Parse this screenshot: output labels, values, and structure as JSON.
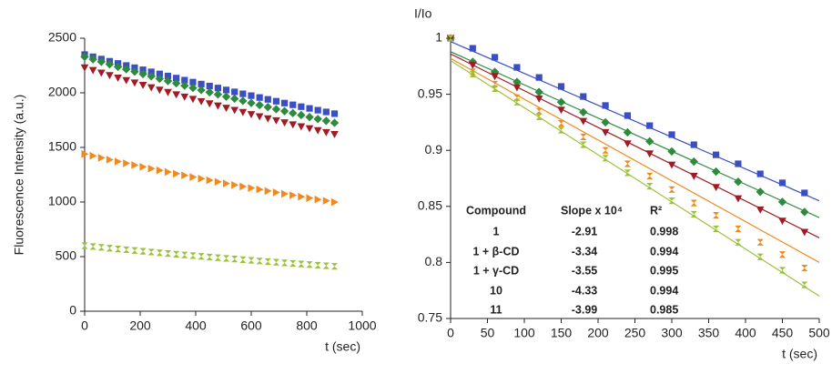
{
  "chart_data": [
    {
      "type": "scatter",
      "ylabel": "Fluorescence Intensity (a.u.)",
      "xlabel": "t (sec)",
      "xlim": [
        0,
        1000
      ],
      "xticks": [
        0,
        200,
        400,
        600,
        800,
        1000
      ],
      "ylim": [
        0,
        2500
      ],
      "yticks": [
        0,
        500,
        1000,
        1500,
        2000,
        2500
      ],
      "x": [
        0,
        30,
        60,
        90,
        120,
        150,
        180,
        210,
        240,
        270,
        300,
        330,
        360,
        390,
        420,
        450,
        480,
        510,
        540,
        570,
        600,
        630,
        660,
        690,
        720,
        750,
        780,
        810,
        840,
        870,
        900
      ],
      "series": [
        {
          "color": "#3b4ec2",
          "marker": "square",
          "values": [
            2350,
            2330,
            2309,
            2289,
            2269,
            2250,
            2230,
            2211,
            2192,
            2173,
            2154,
            2135,
            2116,
            2098,
            2080,
            2062,
            2044,
            2026,
            2009,
            1991,
            1974,
            1957,
            1940,
            1923,
            1906,
            1890,
            1873,
            1857,
            1841,
            1825,
            1809
          ]
        },
        {
          "color": "#2e8b3e",
          "marker": "diamond",
          "values": [
            2330,
            2307,
            2284,
            2261,
            2238,
            2216,
            2194,
            2172,
            2151,
            2129,
            2108,
            2087,
            2066,
            2045,
            2025,
            2005,
            1985,
            1965,
            1946,
            1926,
            1907,
            1888,
            1869,
            1850,
            1832,
            1814,
            1796,
            1778,
            1760,
            1743,
            1725
          ]
        },
        {
          "color": "#a01b24",
          "marker": "triangle-down",
          "values": [
            2230,
            2206,
            2183,
            2160,
            2137,
            2114,
            2092,
            2070,
            2048,
            2026,
            2005,
            1984,
            1963,
            1942,
            1921,
            1901,
            1881,
            1861,
            1841,
            1822,
            1802,
            1783,
            1764,
            1746,
            1727,
            1709,
            1691,
            1673,
            1655,
            1638,
            1620
          ]
        },
        {
          "color": "#f08a1e",
          "marker": "triangle-right",
          "values": [
            1440,
            1423,
            1405,
            1388,
            1371,
            1355,
            1338,
            1322,
            1306,
            1290,
            1275,
            1259,
            1244,
            1229,
            1214,
            1199,
            1185,
            1170,
            1156,
            1142,
            1128,
            1115,
            1101,
            1088,
            1075,
            1062,
            1049,
            1036,
            1023,
            1011,
            999
          ]
        },
        {
          "color": "#9cc13a",
          "marker": "hourglass",
          "values": [
            600,
            592,
            585,
            577,
            570,
            563,
            556,
            549,
            542,
            535,
            528,
            522,
            515,
            509,
            502,
            496,
            490,
            484,
            478,
            472,
            466,
            460,
            454,
            449,
            443,
            438,
            432,
            427,
            421,
            416,
            411
          ]
        }
      ]
    },
    {
      "type": "scatter",
      "ylabel": "I/Io",
      "xlabel": "t (sec)",
      "xlim": [
        0,
        500
      ],
      "xticks": [
        0,
        50,
        100,
        150,
        200,
        250,
        300,
        350,
        400,
        450,
        500
      ],
      "ylim": [
        0.75,
        1
      ],
      "yticks": [
        0.75,
        0.8,
        0.85,
        0.9,
        0.95,
        1
      ],
      "x": [
        0,
        30,
        60,
        90,
        120,
        150,
        180,
        210,
        240,
        270,
        300,
        330,
        360,
        390,
        420,
        450,
        480
      ],
      "fit_x": [
        0,
        500
      ],
      "series": [
        {
          "color": "#3b4ec2",
          "marker": "square",
          "fit": [
            0.997,
            0.855
          ],
          "values": [
            1,
            0.991,
            0.983,
            0.974,
            0.965,
            0.957,
            0.948,
            0.94,
            0.931,
            0.922,
            0.914,
            0.905,
            0.896,
            0.888,
            0.879,
            0.871,
            0.862
          ]
        },
        {
          "color": "#2e8b3e",
          "marker": "diamond",
          "fit": [
            0.988,
            0.84
          ],
          "values": [
            1,
            0.979,
            0.97,
            0.961,
            0.952,
            0.943,
            0.934,
            0.925,
            0.916,
            0.908,
            0.899,
            0.89,
            0.881,
            0.872,
            0.863,
            0.854,
            0.845
          ]
        },
        {
          "color": "#a01b24",
          "marker": "triangle-down",
          "fit": [
            0.986,
            0.822
          ],
          "values": [
            1,
            0.976,
            0.966,
            0.956,
            0.946,
            0.936,
            0.926,
            0.916,
            0.906,
            0.897,
            0.887,
            0.877,
            0.867,
            0.857,
            0.847,
            0.837,
            0.827
          ]
        },
        {
          "color": "#f08a1e",
          "marker": "hourglass",
          "fit": [
            0.982,
            0.8
          ],
          "values": [
            1,
            0.97,
            0.959,
            0.947,
            0.935,
            0.924,
            0.912,
            0.9,
            0.888,
            0.877,
            0.865,
            0.853,
            0.842,
            0.83,
            0.818,
            0.807,
            0.795
          ]
        },
        {
          "color": "#9cc13a",
          "marker": "hourglass",
          "fit": [
            0.98,
            0.77
          ],
          "values": [
            1,
            0.968,
            0.955,
            0.943,
            0.93,
            0.918,
            0.905,
            0.893,
            0.88,
            0.868,
            0.855,
            0.843,
            0.83,
            0.818,
            0.805,
            0.793,
            0.78
          ]
        }
      ],
      "table": {
        "header": [
          "Compound",
          "Slope x 10⁴",
          "R²"
        ],
        "rows": [
          [
            "1",
            "-2.91",
            "0.998"
          ],
          [
            "1 + β-CD",
            "-3.34",
            "0.994"
          ],
          [
            "1 + γ-CD",
            "-3.55",
            "0.995"
          ],
          [
            "10",
            "-4.33",
            "0.994"
          ],
          [
            "11",
            "-3.99",
            "0.985"
          ]
        ]
      }
    }
  ]
}
